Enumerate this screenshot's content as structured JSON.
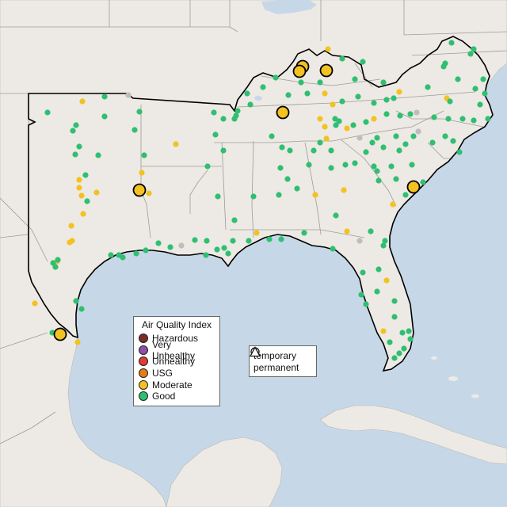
{
  "legend": {
    "title": "Air Quality Index",
    "categories": [
      {
        "label": "Hazardous",
        "color": "#7e2a2a"
      },
      {
        "label": "Very Unhealthy",
        "color": "#8e4fa8"
      },
      {
        "label": "Unhealthy",
        "color": "#e03c31"
      },
      {
        "label": "USG",
        "color": "#e57c1a"
      },
      {
        "label": "Moderate",
        "color": "#f3c221"
      },
      {
        "label": "Good",
        "color": "#2fbf71"
      }
    ]
  },
  "monitor_type_legend": {
    "temporary": "temporary",
    "permanent": "permanent"
  },
  "colors": {
    "ocean": "#c6d8e8",
    "land": "#ede9e4",
    "highlight_border": "#000000",
    "unknown_station": "#bdbdbd"
  }
}
